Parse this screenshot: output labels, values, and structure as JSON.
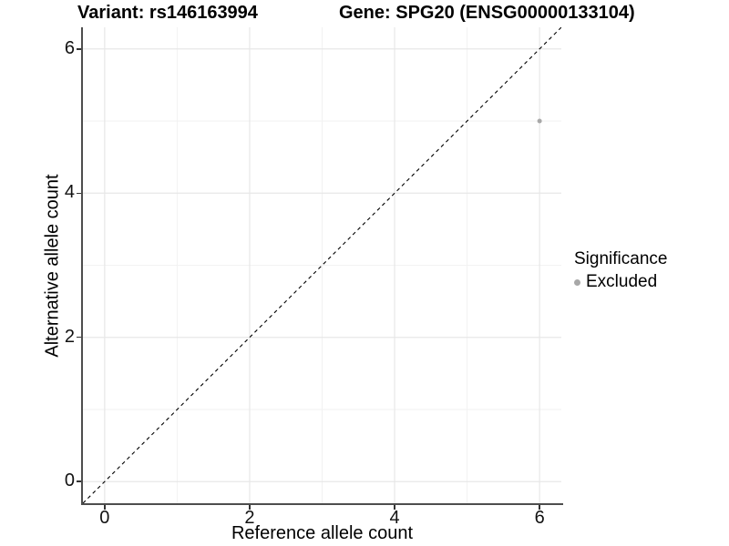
{
  "titles": {
    "variant": "Variant: rs146163994",
    "gene": "Gene: SPG20 (ENSG00000133104)"
  },
  "colors": {
    "background": "#ffffff",
    "axis_line": "#4d4d4d",
    "tick_mark": "#333333",
    "grid_major": "#e7e7e7",
    "grid_minor": "#f2f2f2",
    "point": "#a8a8a8",
    "identity_line": "#000000",
    "text": "#000000"
  },
  "chart_data": {
    "type": "scatter",
    "title": "Variant: rs146163994   Gene: SPG20 (ENSG00000133104)",
    "xlabel": "Reference allele count",
    "ylabel": "Alternative allele count",
    "xlim": [
      -0.3,
      6.3
    ],
    "ylim": [
      -0.3,
      6.3
    ],
    "xticks": [
      0,
      2,
      4,
      6
    ],
    "yticks": [
      0,
      2,
      4,
      6
    ],
    "minor_gridlines_x": [
      1,
      3,
      5
    ],
    "minor_gridlines_y": [
      1,
      3,
      5
    ],
    "grid": "on",
    "identity_line": {
      "style": "dashed",
      "from": [
        -0.3,
        -0.3
      ],
      "to": [
        6.3,
        6.3
      ],
      "color": "#000000"
    },
    "series": [
      {
        "name": "Excluded",
        "color": "#a8a8a8",
        "points": [
          [
            6,
            5
          ]
        ]
      }
    ],
    "legend": {
      "title": "Significance",
      "position": "right",
      "items": [
        {
          "label": "Excluded",
          "color": "#a8a8a8"
        }
      ]
    }
  }
}
